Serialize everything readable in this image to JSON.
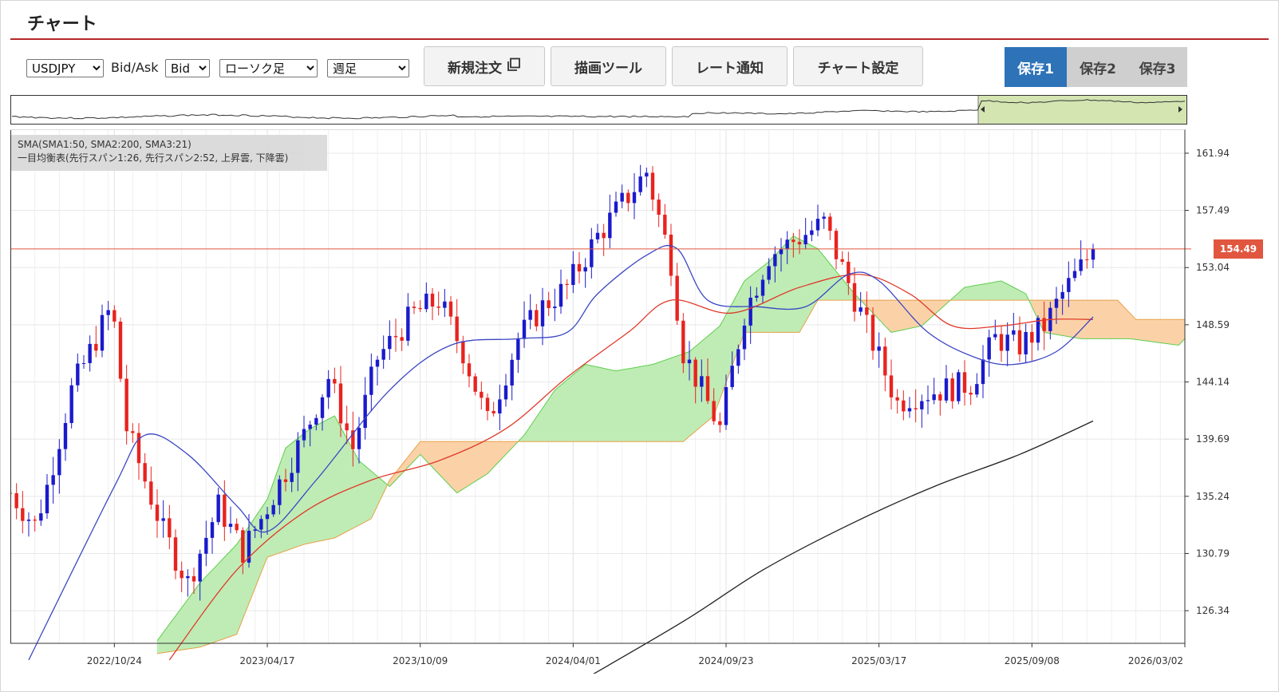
{
  "page_title": "チャート",
  "toolbar": {
    "symbol": {
      "selected": "USDJPY",
      "options": [
        "USDJPY"
      ]
    },
    "bid_ask_label": "Bid/Ask",
    "side": {
      "selected": "Bid",
      "options": [
        "Bid"
      ]
    },
    "chart_type": {
      "selected": "ローソク足",
      "options": [
        "ローソク足"
      ]
    },
    "period": {
      "selected": "週足",
      "options": [
        "週足"
      ]
    },
    "new_order_label": "新規注文",
    "drawing_tools_label": "描画ツール",
    "rate_alert_label": "レート通知",
    "chart_settings_label": "チャート設定",
    "saves": [
      {
        "label": "保存1",
        "active": true
      },
      {
        "label": "保存2",
        "active": false
      },
      {
        "label": "保存3",
        "active": false
      }
    ]
  },
  "legend": {
    "line1": "SMA(SMA1:50, SMA2:200, SMA3:21)",
    "line2": "一目均衡表(先行スパン1:26, 先行スパン2:52, 上昇雲, 下降雲)"
  },
  "current_price_label": "154.49",
  "colors": {
    "up_candle": "#1a1acc",
    "down_candle": "#e8231f",
    "sma1": "#3b46c4",
    "sma2": "#222222",
    "sma3": "#e0392b",
    "cloud_up": "#bfecb5",
    "cloud_down": "#fbd2a8",
    "cloud_up_edge": "#5fcf4f",
    "cloud_down_edge": "#e6a14b",
    "price_line": "#e0563f",
    "accent": "#2e73b8",
    "title_rule": "#b5282a"
  },
  "chart_data": {
    "type": "candlestick",
    "symbol": "USDJPY",
    "timeframe": "週足",
    "y_ticks": [
      126.34,
      130.79,
      135.24,
      139.69,
      144.14,
      148.59,
      153.04,
      157.49,
      161.94
    ],
    "ylim": [
      123.8,
      163.8
    ],
    "x_ticks": [
      "2022/10/24",
      "2023/04/17",
      "2023/10/09",
      "2024/04/01",
      "2024/09/23",
      "2025/03/17",
      "2025/09/08",
      "2026/03/02"
    ],
    "x_start_date": "2022/06/27",
    "current_price": 154.49,
    "anchors": [
      [
        "2022/06/27",
        135.5
      ],
      [
        "2022/07/25",
        133.0
      ],
      [
        "2022/08/08",
        136.0
      ],
      [
        "2022/09/05",
        143.5
      ],
      [
        "2022/10/17",
        149.5
      ],
      [
        "2022/10/24",
        148.5
      ],
      [
        "2022/11/07",
        140.5
      ],
      [
        "2022/12/19",
        132.5
      ],
      [
        "2023/01/16",
        128.5
      ],
      [
        "2023/02/20",
        134.5
      ],
      [
        "2023/03/20",
        131.0
      ],
      [
        "2023/04/10",
        133.5
      ],
      [
        "2023/05/29",
        140.0
      ],
      [
        "2023/06/26",
        144.5
      ],
      [
        "2023/07/24",
        139.0
      ],
      [
        "2023/08/21",
        146.0
      ],
      [
        "2023/10/02",
        149.5
      ],
      [
        "2023/10/30",
        150.5
      ],
      [
        "2023/11/27",
        146.5
      ],
      [
        "2023/12/25",
        141.0
      ],
      [
        "2024/01/29",
        147.5
      ],
      [
        "2024/02/26",
        150.0
      ],
      [
        "2024/03/25",
        151.5
      ],
      [
        "2024/04/29",
        155.5
      ],
      [
        "2024/06/24",
        160.5
      ],
      [
        "2024/07/22",
        153.5
      ],
      [
        "2024/08/05",
        146.5
      ],
      [
        "2024/09/16",
        140.5
      ],
      [
        "2024/10/14",
        149.5
      ],
      [
        "2024/11/11",
        154.0
      ],
      [
        "2025/01/13",
        156.5
      ],
      [
        "2025/02/24",
        149.5
      ],
      [
        "2025/04/07",
        142.5
      ],
      [
        "2025/04/21",
        143.0
      ],
      [
        "2025/06/30",
        144.0
      ],
      [
        "2025/07/28",
        147.5
      ],
      [
        "2025/08/25",
        147.0
      ],
      [
        "2025/09/22",
        148.5
      ],
      [
        "2025/10/13",
        151.0
      ],
      [
        "2025/11/17",
        154.4
      ]
    ],
    "sma1_points": [
      [
        "2022/07/18",
        122.5
      ],
      [
        "2022/10/24",
        136.0
      ],
      [
        "2022/11/28",
        140.0
      ],
      [
        "2023/01/16",
        138.5
      ],
      [
        "2023/03/13",
        134.5
      ],
      [
        "2023/04/17",
        132.5
      ],
      [
        "2023/06/12",
        136.5
      ],
      [
        "2023/09/04",
        143.5
      ],
      [
        "2023/11/13",
        147.0
      ],
      [
        "2024/01/29",
        147.5
      ],
      [
        "2024/03/25",
        148.0
      ],
      [
        "2024/04/29",
        151.0
      ],
      [
        "2024/06/24",
        154.0
      ],
      [
        "2024/07/29",
        154.5
      ],
      [
        "2024/09/02",
        150.5
      ],
      [
        "2024/10/28",
        150.0
      ],
      [
        "2024/12/23",
        150.0
      ],
      [
        "2025/02/10",
        152.5
      ],
      [
        "2025/03/17",
        152.0
      ],
      [
        "2025/05/12",
        148.0
      ],
      [
        "2025/07/07",
        146.0
      ],
      [
        "2025/08/18",
        145.5
      ],
      [
        "2025/10/06",
        146.5
      ],
      [
        "2025/11/17",
        149.2
      ]
    ],
    "sma2_points": [
      [
        "2024/04/01",
        120.5
      ],
      [
        "2024/08/05",
        125.5
      ],
      [
        "2024/11/04",
        129.5
      ],
      [
        "2025/02/10",
        133.0
      ],
      [
        "2025/05/19",
        136.0
      ],
      [
        "2025/08/25",
        138.5
      ],
      [
        "2025/11/17",
        141.1
      ]
    ],
    "sma3_points": [
      [
        "2022/12/26",
        122.5
      ],
      [
        "2023/03/13",
        129.5
      ],
      [
        "2023/05/29",
        134.0
      ],
      [
        "2023/08/14",
        136.5
      ],
      [
        "2023/10/30",
        138.0
      ],
      [
        "2024/01/15",
        140.5
      ],
      [
        "2024/03/25",
        144.5
      ],
      [
        "2024/06/03",
        148.0
      ],
      [
        "2024/07/22",
        150.5
      ],
      [
        "2024/09/30",
        149.5
      ],
      [
        "2024/12/16",
        151.5
      ],
      [
        "2025/02/24",
        152.5
      ],
      [
        "2025/04/21",
        151.0
      ],
      [
        "2025/06/09",
        148.5
      ],
      [
        "2025/08/04",
        148.5
      ],
      [
        "2025/09/29",
        149.0
      ],
      [
        "2025/11/17",
        149.0
      ]
    ],
    "span1_points": [
      [
        "2022/12/12",
        124.0
      ],
      [
        "2023/01/30",
        128.5
      ],
      [
        "2023/03/13",
        131.5
      ],
      [
        "2023/04/17",
        135.0
      ],
      [
        "2023/05/08",
        139.0
      ],
      [
        "2023/06/05",
        140.5
      ],
      [
        "2023/07/03",
        141.5
      ],
      [
        "2023/07/31",
        138.0
      ],
      [
        "2023/09/04",
        136.0
      ],
      [
        "2023/10/09",
        138.5
      ],
      [
        "2023/11/20",
        135.5
      ],
      [
        "2023/12/25",
        137.0
      ],
      [
        "2024/02/05",
        140.0
      ],
      [
        "2024/03/11",
        143.5
      ],
      [
        "2024/04/15",
        145.5
      ],
      [
        "2024/05/20",
        145.0
      ],
      [
        "2024/07/01",
        145.5
      ],
      [
        "2024/08/12",
        146.5
      ],
      [
        "2024/09/16",
        148.5
      ],
      [
        "2024/10/14",
        152.0
      ],
      [
        "2024/11/11",
        153.5
      ],
      [
        "2024/12/09",
        155.5
      ],
      [
        "2025/01/06",
        154.5
      ],
      [
        "2025/02/17",
        151.0
      ],
      [
        "2025/03/31",
        148.0
      ],
      [
        "2025/05/05",
        148.5
      ],
      [
        "2025/06/23",
        151.5
      ],
      [
        "2025/08/04",
        152.0
      ],
      [
        "2025/09/01",
        151.0
      ],
      [
        "2025/09/22",
        148.0
      ],
      [
        "2025/11/03",
        147.5
      ],
      [
        "2025/12/29",
        147.5
      ],
      [
        "2026/02/23",
        147.0
      ],
      [
        "2026/03/02",
        147.5
      ]
    ],
    "span2_points": [
      [
        "2022/12/12",
        123.0
      ],
      [
        "2023/01/30",
        123.5
      ],
      [
        "2023/03/13",
        124.5
      ],
      [
        "2023/04/17",
        130.5
      ],
      [
        "2023/05/29",
        131.5
      ],
      [
        "2023/07/03",
        132.0
      ],
      [
        "2023/08/14",
        133.5
      ],
      [
        "2023/09/04",
        136.5
      ],
      [
        "2023/10/09",
        139.5
      ],
      [
        "2024/04/29",
        139.5
      ],
      [
        "2024/08/05",
        139.5
      ],
      [
        "2024/09/09",
        141.5
      ],
      [
        "2024/10/14",
        148.0
      ],
      [
        "2024/12/16",
        148.0
      ],
      [
        "2025/01/06",
        150.5
      ],
      [
        "2025/11/10",
        150.5
      ],
      [
        "2025/12/15",
        150.5
      ],
      [
        "2026/01/05",
        149.0
      ],
      [
        "2026/03/02",
        149.0
      ]
    ]
  }
}
